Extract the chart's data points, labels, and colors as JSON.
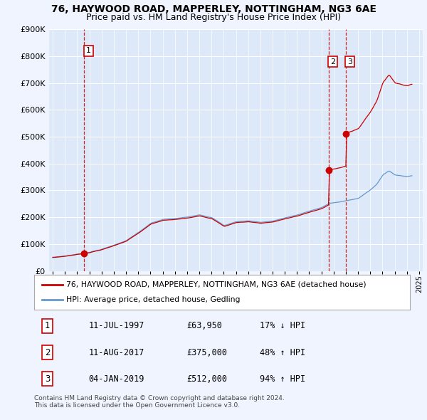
{
  "title": "76, HAYWOOD ROAD, MAPPERLEY, NOTTINGHAM, NG3 6AE",
  "subtitle": "Price paid vs. HM Land Registry's House Price Index (HPI)",
  "legend_red": "76, HAYWOOD ROAD, MAPPERLEY, NOTTINGHAM, NG3 6AE (detached house)",
  "legend_blue": "HPI: Average price, detached house, Gedling",
  "footer1": "Contains HM Land Registry data © Crown copyright and database right 2024.",
  "footer2": "This data is licensed under the Open Government Licence v3.0.",
  "transactions": [
    {
      "num": 1,
      "date": "11-JUL-1997",
      "price": "£63,950",
      "hpi": "17% ↓ HPI",
      "year": 1997.53
    },
    {
      "num": 2,
      "date": "11-AUG-2017",
      "price": "£375,000",
      "hpi": "48% ↑ HPI",
      "year": 2017.61
    },
    {
      "num": 3,
      "date": "04-JAN-2019",
      "price": "£512,000",
      "hpi": "94% ↑ HPI",
      "year": 2019.01
    }
  ],
  "sale_years": [
    1997.53,
    2017.61,
    2019.01
  ],
  "sale_prices": [
    63950,
    375000,
    512000
  ],
  "xlim": [
    1994.7,
    2025.3
  ],
  "ylim": [
    0,
    900000
  ],
  "yticks": [
    0,
    100000,
    200000,
    300000,
    400000,
    500000,
    600000,
    700000,
    800000,
    900000
  ],
  "xticks": [
    1995,
    1996,
    1997,
    1998,
    1999,
    2000,
    2001,
    2002,
    2003,
    2004,
    2005,
    2006,
    2007,
    2008,
    2009,
    2010,
    2011,
    2012,
    2013,
    2014,
    2015,
    2016,
    2017,
    2018,
    2019,
    2020,
    2021,
    2022,
    2023,
    2024,
    2025
  ],
  "bg_color": "#dde8f8",
  "fig_bg_color": "#f0f4ff",
  "red_color": "#cc0000",
  "blue_color": "#6699cc",
  "grid_color": "#ffffff",
  "title_fontsize": 10,
  "subtitle_fontsize": 9
}
